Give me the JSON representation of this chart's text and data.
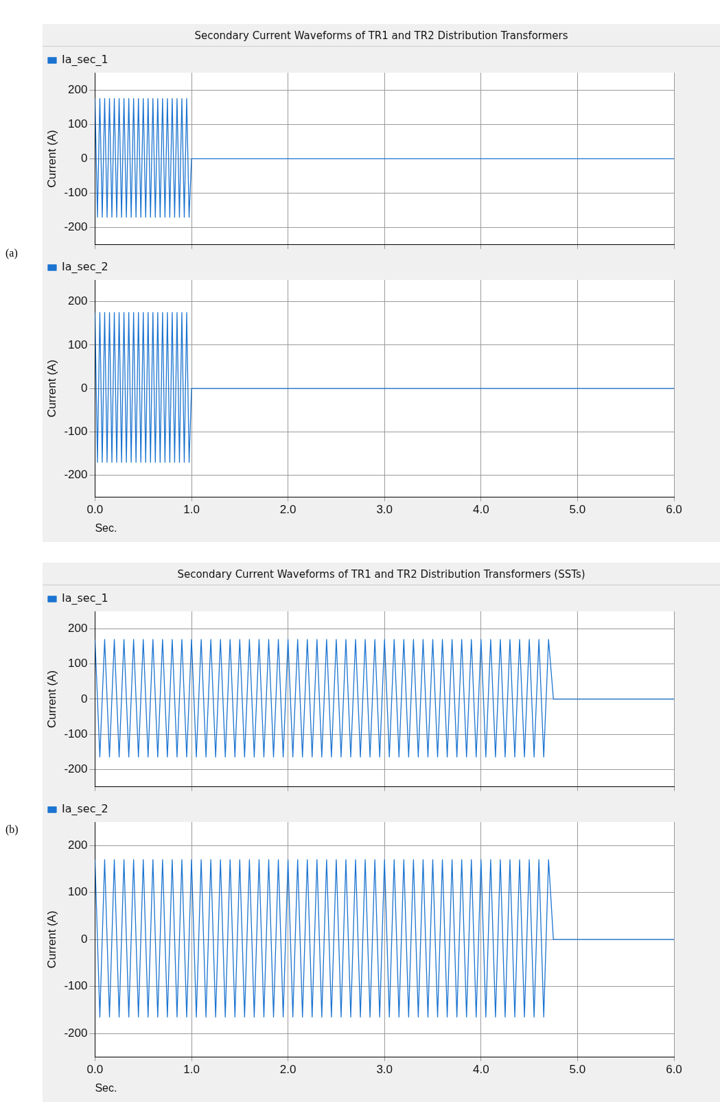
{
  "chart_data": [
    {
      "type": "line",
      "title": "Secondary Current Waveforms of TR1 and TR2 Distribution Transformers",
      "annotations": [
        "(a)"
      ],
      "ylabel": "Current (A)",
      "legend": "top left",
      "grid": true,
      "tick_labels": "y",
      "xlim": [
        0,
        6
      ],
      "xticks": [
        {
          "value": 0,
          "label": null
        },
        {
          "value": 1,
          "label": null
        },
        {
          "value": 2,
          "label": null
        },
        {
          "value": 3,
          "label": null
        },
        {
          "value": 4,
          "label": null
        },
        {
          "value": 5,
          "label": null
        },
        {
          "value": 6,
          "label": null
        }
      ],
      "ylim": [
        -250,
        250
      ],
      "yticks": [
        -200,
        -100,
        0,
        100,
        200
      ],
      "series": [
        {
          "name": "Ia_sec_1",
          "color": "#1a73d0",
          "x": [
            0,
            0.025,
            0.05,
            0.075,
            0.1,
            0.125,
            0.15,
            0.175,
            0.2,
            0.225,
            0.25,
            0.275,
            0.3,
            0.325,
            0.35,
            0.375,
            0.4,
            0.425,
            0.45,
            0.475,
            0.5,
            0.525,
            0.55,
            0.575,
            0.6,
            0.625,
            0.65,
            0.675,
            0.7,
            0.725,
            0.75,
            0.775,
            0.8,
            0.825,
            0.85,
            0.875,
            0.9,
            0.925,
            0.95,
            0.975,
            1,
            6
          ],
          "values": [
            175,
            -170,
            175,
            -170,
            175,
            -170,
            175,
            -170,
            175,
            -170,
            175,
            -170,
            175,
            -170,
            175,
            -170,
            175,
            -170,
            175,
            -170,
            175,
            -170,
            175,
            -170,
            175,
            -170,
            175,
            -170,
            175,
            -170,
            175,
            -170,
            175,
            -170,
            175,
            -170,
            175,
            -170,
            175,
            -170,
            0,
            0
          ]
        }
      ]
    },
    {
      "type": "line",
      "xlabel": "Sec.",
      "ylabel": "Current (A)",
      "legend": "top left",
      "grid": true,
      "xlim": [
        0,
        6
      ],
      "xticks": [
        {
          "value": 0,
          "label": "0.0"
        },
        {
          "value": 1,
          "label": "1.0"
        },
        {
          "value": 2,
          "label": "2.0"
        },
        {
          "value": 3,
          "label": "3.0"
        },
        {
          "value": 4,
          "label": "4.0"
        },
        {
          "value": 5,
          "label": "5.0"
        },
        {
          "value": 6,
          "label": "6.0"
        }
      ],
      "ylim": [
        -250,
        250
      ],
      "yticks": [
        -200,
        -100,
        0,
        100,
        200
      ],
      "series": [
        {
          "name": "Ia_sec_2",
          "color": "#1a73d0",
          "x": [
            0,
            0.025,
            0.05,
            0.075,
            0.1,
            0.125,
            0.15,
            0.175,
            0.2,
            0.225,
            0.25,
            0.275,
            0.3,
            0.325,
            0.35,
            0.375,
            0.4,
            0.425,
            0.45,
            0.475,
            0.5,
            0.525,
            0.55,
            0.575,
            0.6,
            0.625,
            0.65,
            0.675,
            0.7,
            0.725,
            0.75,
            0.775,
            0.8,
            0.825,
            0.85,
            0.875,
            0.9,
            0.925,
            0.95,
            0.975,
            1,
            6
          ],
          "values": [
            175,
            -170,
            175,
            -170,
            175,
            -170,
            175,
            -170,
            175,
            -170,
            175,
            -170,
            175,
            -170,
            175,
            -170,
            175,
            -170,
            175,
            -170,
            175,
            -170,
            175,
            -170,
            175,
            -170,
            175,
            -170,
            175,
            -170,
            175,
            -170,
            175,
            -170,
            175,
            -170,
            175,
            -170,
            175,
            -170,
            0,
            0
          ]
        }
      ]
    },
    {
      "type": "line",
      "title": "Secondary Current Waveforms of TR1 and TR2 Distribution Transformers (SSTs)",
      "annotations": [
        "(b)"
      ],
      "ylabel": "Current (A)",
      "legend": "top left",
      "grid": true,
      "tick_labels": "y",
      "xlim": [
        0,
        6
      ],
      "xticks": [
        {
          "value": 0,
          "label": null
        },
        {
          "value": 1,
          "label": null
        },
        {
          "value": 2,
          "label": null
        },
        {
          "value": 3,
          "label": null
        },
        {
          "value": 4,
          "label": null
        },
        {
          "value": 5,
          "label": null
        },
        {
          "value": 6,
          "label": null
        }
      ],
      "ylim": [
        -250,
        250
      ],
      "yticks": [
        -200,
        -100,
        0,
        100,
        200
      ],
      "series": [
        {
          "name": "Ia_sec_1",
          "color": "#1a73d0",
          "x": [
            0,
            0.05,
            0.1,
            0.15,
            0.2,
            0.25,
            0.3,
            0.35,
            0.4,
            0.45,
            0.5,
            0.55,
            0.6,
            0.65,
            0.7,
            0.75,
            0.8,
            0.85,
            0.9,
            0.95,
            1,
            1.05,
            1.1,
            1.15,
            1.2,
            1.25,
            1.3,
            1.35,
            1.4,
            1.45,
            1.5,
            1.55,
            1.6,
            1.65,
            1.7,
            1.75,
            1.8,
            1.85,
            1.9,
            1.95,
            2,
            2.05,
            2.1,
            2.15,
            2.2,
            2.25,
            2.3,
            2.35,
            2.4,
            2.45,
            2.5,
            2.55,
            2.6,
            2.65,
            2.7,
            2.75,
            2.8,
            2.85,
            2.9,
            2.95,
            3,
            3.05,
            3.1,
            3.15,
            3.2,
            3.25,
            3.3,
            3.35,
            3.4,
            3.45,
            3.5,
            3.55,
            3.6,
            3.65,
            3.7,
            3.75,
            3.8,
            3.85,
            3.9,
            3.95,
            4,
            4.05,
            4.1,
            4.15,
            4.2,
            4.25,
            4.3,
            4.35,
            4.4,
            4.45,
            4.5,
            4.55,
            4.6,
            4.65,
            4.7,
            4.75,
            6
          ],
          "values": [
            170,
            -165,
            170,
            -165,
            170,
            -165,
            170,
            -165,
            170,
            -165,
            170,
            -165,
            170,
            -165,
            170,
            -165,
            170,
            -165,
            170,
            -165,
            170,
            -165,
            170,
            -165,
            170,
            -165,
            170,
            -165,
            170,
            -165,
            170,
            -165,
            170,
            -165,
            170,
            -165,
            170,
            -165,
            170,
            -165,
            170,
            -165,
            170,
            -165,
            170,
            -165,
            170,
            -165,
            170,
            -165,
            170,
            -165,
            170,
            -165,
            170,
            -165,
            170,
            -165,
            170,
            -165,
            170,
            -165,
            170,
            -165,
            170,
            -165,
            170,
            -165,
            170,
            -165,
            170,
            -165,
            170,
            -165,
            170,
            -165,
            170,
            -165,
            170,
            -165,
            170,
            -165,
            170,
            -165,
            170,
            -165,
            170,
            -165,
            170,
            -165,
            170,
            -165,
            170,
            -165,
            170,
            0,
            0
          ]
        }
      ]
    },
    {
      "type": "line",
      "xlabel": "Sec.",
      "ylabel": "Current (A)",
      "legend": "top left",
      "grid": true,
      "xlim": [
        0,
        6
      ],
      "xticks": [
        {
          "value": 0,
          "label": "0.0"
        },
        {
          "value": 1,
          "label": "1.0"
        },
        {
          "value": 2,
          "label": "2.0"
        },
        {
          "value": 3,
          "label": "3.0"
        },
        {
          "value": 4,
          "label": "4.0"
        },
        {
          "value": 5,
          "label": "5.0"
        },
        {
          "value": 6,
          "label": "6.0"
        }
      ],
      "ylim": [
        -250,
        250
      ],
      "yticks": [
        -200,
        -100,
        0,
        100,
        200
      ],
      "series": [
        {
          "name": "Ia_sec_2",
          "color": "#1a73d0",
          "x": [
            0,
            0.05,
            0.1,
            0.15,
            0.2,
            0.25,
            0.3,
            0.35,
            0.4,
            0.45,
            0.5,
            0.55,
            0.6,
            0.65,
            0.7,
            0.75,
            0.8,
            0.85,
            0.9,
            0.95,
            1,
            1.05,
            1.1,
            1.15,
            1.2,
            1.25,
            1.3,
            1.35,
            1.4,
            1.45,
            1.5,
            1.55,
            1.6,
            1.65,
            1.7,
            1.75,
            1.8,
            1.85,
            1.9,
            1.95,
            2,
            2.05,
            2.1,
            2.15,
            2.2,
            2.25,
            2.3,
            2.35,
            2.4,
            2.45,
            2.5,
            2.55,
            2.6,
            2.65,
            2.7,
            2.75,
            2.8,
            2.85,
            2.9,
            2.95,
            3,
            3.05,
            3.1,
            3.15,
            3.2,
            3.25,
            3.3,
            3.35,
            3.4,
            3.45,
            3.5,
            3.55,
            3.6,
            3.65,
            3.7,
            3.75,
            3.8,
            3.85,
            3.9,
            3.95,
            4,
            4.05,
            4.1,
            4.15,
            4.2,
            4.25,
            4.3,
            4.35,
            4.4,
            4.45,
            4.5,
            4.55,
            4.6,
            4.65,
            4.7,
            4.75,
            6
          ],
          "values": [
            170,
            -165,
            170,
            -165,
            170,
            -165,
            170,
            -165,
            170,
            -165,
            170,
            -165,
            170,
            -165,
            170,
            -165,
            170,
            -165,
            170,
            -165,
            170,
            -165,
            170,
            -165,
            170,
            -165,
            170,
            -165,
            170,
            -165,
            170,
            -165,
            170,
            -165,
            170,
            -165,
            170,
            -165,
            170,
            -165,
            170,
            -165,
            170,
            -165,
            170,
            -165,
            170,
            -165,
            170,
            -165,
            170,
            -165,
            170,
            -165,
            170,
            -165,
            170,
            -165,
            170,
            -165,
            170,
            -165,
            170,
            -165,
            170,
            -165,
            170,
            -165,
            170,
            -165,
            170,
            -165,
            170,
            -165,
            170,
            -165,
            170,
            -165,
            170,
            -165,
            170,
            -165,
            170,
            -165,
            170,
            -165,
            170,
            -165,
            170,
            -165,
            170,
            -165,
            170,
            -165,
            170,
            0,
            0
          ]
        }
      ]
    }
  ]
}
